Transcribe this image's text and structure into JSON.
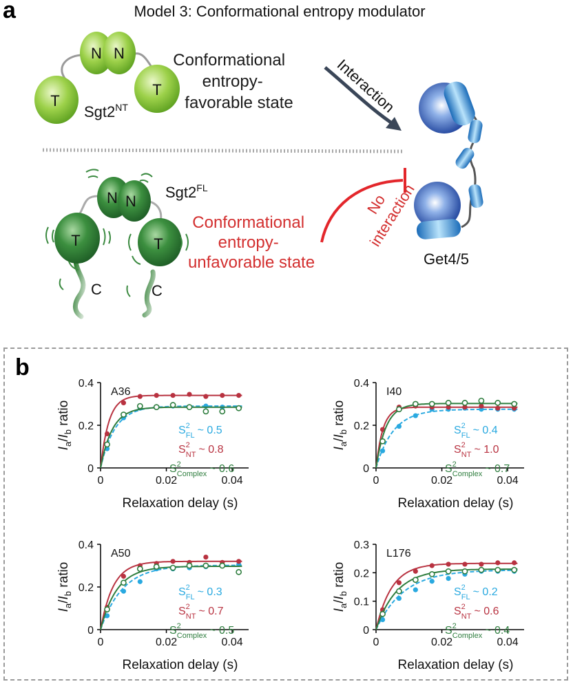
{
  "panel_a": {
    "letter": "a",
    "title": "Model 3: Conformational entropy modulator",
    "sgt2_nt_base": "Sgt2",
    "sgt2_nt_sup": "NT",
    "sgt2_fl_base": "Sgt2",
    "sgt2_fl_sup": "FL",
    "domain_n": "N",
    "domain_t": "T",
    "domain_c": "C",
    "favorable_line1": "Conformational",
    "favorable_line2": "entropy-",
    "favorable_line3": "favorable state",
    "unfavorable_line1": "Conformational",
    "unfavorable_line2": "entropy-",
    "unfavorable_line3": "unfavorable state",
    "interaction_label": "Interaction",
    "no_interaction_line1": "No",
    "no_interaction_line2": "interaction",
    "get45_label": "Get4/5",
    "colors": {
      "favorable_text": "#1a1a1a",
      "unfavorable_text": "#d32f2f",
      "arrow": "#3a4658",
      "green_light": "#8dc63f",
      "green_dark": "#2e7d32",
      "blue": "#1f5fb5"
    }
  },
  "panel_b": {
    "letter": "b",
    "ylabel_I": "I",
    "ylabel_a": "a",
    "ylabel_slash": "/I",
    "ylabel_b": "b",
    "ylabel_ratio": " ratio",
    "xlabel": "Relaxation delay (s)",
    "s_symbol": "S",
    "s_sup": "2",
    "sub_fl": "FL",
    "sub_nt": "NT",
    "sub_complex": "Complex",
    "colors": {
      "FL": "#29a9e0",
      "NT": "#b83240",
      "Complex": "#2e7d3e"
    }
  },
  "chart_data": [
    {
      "type": "scatter",
      "title": "A36",
      "xlabel": "Relaxation delay (s)",
      "ylabel": "Ia/Ib ratio",
      "xlim": [
        0,
        0.045
      ],
      "ylim": [
        0,
        0.4
      ],
      "xticks": [
        "0",
        "0.02",
        "0.04"
      ],
      "xtick_values": [
        0,
        0.02,
        0.04
      ],
      "yticks": [
        "0",
        "0.2",
        "0.4"
      ],
      "ytick_values": [
        0,
        0.2,
        0.4
      ],
      "x": [
        0.002,
        0.007,
        0.012,
        0.017,
        0.022,
        0.027,
        0.032,
        0.037,
        0.042
      ],
      "series": [
        {
          "name": "FL",
          "annotation_sub": "FL",
          "annotation_value": "~ 0.5",
          "style": "filled-dash",
          "values": [
            0.09,
            0.235,
            0.28,
            0.285,
            0.29,
            0.285,
            0.29,
            0.285,
            0.28
          ],
          "fit_plateau": 0.29,
          "fit_k": 230
        },
        {
          "name": "NT",
          "annotation_sub": "NT",
          "annotation_value": "~ 0.8",
          "style": "filled-solid",
          "values": [
            0.16,
            0.305,
            0.335,
            0.34,
            0.34,
            0.345,
            0.335,
            0.34,
            0.34
          ],
          "fit_plateau": 0.34,
          "fit_k": 400
        },
        {
          "name": "Complex",
          "annotation_sub": "Complex",
          "annotation_value": "~ 0.6",
          "style": "open-solid",
          "values": [
            0.11,
            0.25,
            0.29,
            0.285,
            0.295,
            0.285,
            0.265,
            0.265,
            0.28
          ],
          "fit_plateau": 0.285,
          "fit_k": 280
        }
      ]
    },
    {
      "type": "scatter",
      "title": "I40",
      "xlabel": "Relaxation delay (s)",
      "ylabel": "Ia/Ib ratio",
      "xlim": [
        0,
        0.045
      ],
      "ylim": [
        0,
        0.4
      ],
      "xticks": [
        "0",
        "0.02",
        "0.04"
      ],
      "xtick_values": [
        0,
        0.02,
        0.04
      ],
      "yticks": [
        "0",
        "0.2",
        "0.4"
      ],
      "ytick_values": [
        0,
        0.2,
        0.4
      ],
      "x": [
        0.002,
        0.007,
        0.012,
        0.017,
        0.022,
        0.027,
        0.032,
        0.037,
        0.042
      ],
      "series": [
        {
          "name": "FL",
          "annotation_sub": "FL",
          "annotation_value": "~ 0.4",
          "style": "filled-dash",
          "values": [
            0.08,
            0.195,
            0.245,
            0.275,
            0.275,
            0.28,
            0.275,
            0.275,
            0.275
          ],
          "fit_plateau": 0.275,
          "fit_k": 190
        },
        {
          "name": "NT",
          "annotation_sub": "NT",
          "annotation_value": "~ 1.0",
          "style": "filled-solid",
          "values": [
            0.18,
            0.285,
            0.29,
            0.285,
            0.285,
            0.285,
            0.29,
            0.28,
            0.28
          ],
          "fit_plateau": 0.285,
          "fit_k": 480
        },
        {
          "name": "Complex",
          "annotation_sub": "Complex",
          "annotation_value": "~ 0.7",
          "style": "open-solid",
          "values": [
            0.125,
            0.275,
            0.3,
            0.3,
            0.305,
            0.305,
            0.315,
            0.305,
            0.3
          ],
          "fit_plateau": 0.302,
          "fit_k": 330
        }
      ]
    },
    {
      "type": "scatter",
      "title": "A50",
      "xlabel": "Relaxation delay (s)",
      "ylabel": "Ia/Ib ratio",
      "xlim": [
        0,
        0.045
      ],
      "ylim": [
        0,
        0.4
      ],
      "xticks": [
        "0",
        "0.02",
        "0.04"
      ],
      "xtick_values": [
        0,
        0.02,
        0.04
      ],
      "yticks": [
        "0",
        "0.2",
        "0.4"
      ],
      "ytick_values": [
        0,
        0.2,
        0.4
      ],
      "x": [
        0.002,
        0.007,
        0.012,
        0.017,
        0.022,
        0.027,
        0.032,
        0.037,
        0.042
      ],
      "series": [
        {
          "name": "FL",
          "annotation_sub": "FL",
          "annotation_value": "~ 0.3",
          "style": "filled-dash",
          "values": [
            0.065,
            0.18,
            0.225,
            0.285,
            0.285,
            0.29,
            0.295,
            0.3,
            0.305
          ],
          "fit_plateau": 0.302,
          "fit_k": 150
        },
        {
          "name": "NT",
          "annotation_sub": "NT",
          "annotation_value": "~ 0.7",
          "style": "filled-solid",
          "values": [
            0.105,
            0.25,
            0.3,
            0.31,
            0.32,
            0.315,
            0.34,
            0.315,
            0.32
          ],
          "fit_plateau": 0.32,
          "fit_k": 260
        },
        {
          "name": "Complex",
          "annotation_sub": "Complex",
          "annotation_value": "~ 0.5",
          "style": "open-solid",
          "values": [
            0.095,
            0.22,
            0.285,
            0.295,
            0.29,
            0.3,
            0.3,
            0.3,
            0.27
          ],
          "fit_plateau": 0.297,
          "fit_k": 200
        }
      ]
    },
    {
      "type": "scatter",
      "title": "L176",
      "xlabel": "Relaxation delay (s)",
      "ylabel": "Ia/Ib ratio",
      "xlim": [
        0,
        0.045
      ],
      "ylim": [
        0,
        0.3
      ],
      "xticks": [
        "0",
        "0.02",
        "0.04"
      ],
      "xtick_values": [
        0,
        0.02,
        0.04
      ],
      "yticks": [
        "0",
        "0.1",
        "0.2",
        "0.3"
      ],
      "ytick_values": [
        0,
        0.1,
        0.2,
        0.3
      ],
      "x": [
        0.002,
        0.007,
        0.012,
        0.017,
        0.022,
        0.027,
        0.032,
        0.037,
        0.042
      ],
      "series": [
        {
          "name": "FL",
          "annotation_sub": "FL",
          "annotation_value": "~ 0.2",
          "style": "filled-dash",
          "values": [
            0.035,
            0.11,
            0.14,
            0.17,
            0.18,
            0.195,
            0.205,
            0.205,
            0.205
          ],
          "fit_plateau": 0.21,
          "fit_k": 120
        },
        {
          "name": "NT",
          "annotation_sub": "NT",
          "annotation_value": "~ 0.6",
          "style": "filled-solid",
          "values": [
            0.07,
            0.165,
            0.205,
            0.225,
            0.23,
            0.23,
            0.23,
            0.235,
            0.235
          ],
          "fit_plateau": 0.233,
          "fit_k": 210
        },
        {
          "name": "Complex",
          "annotation_sub": "Complex",
          "annotation_value": "~ 0.4",
          "style": "open-solid",
          "values": [
            0.055,
            0.135,
            0.175,
            0.195,
            0.205,
            0.205,
            0.21,
            0.21,
            0.21
          ],
          "fit_plateau": 0.213,
          "fit_k": 160
        }
      ]
    }
  ]
}
